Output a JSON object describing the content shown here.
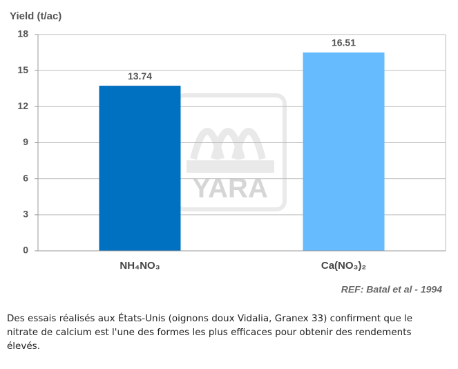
{
  "chart_data": {
    "type": "bar",
    "y_label": "Yield (t/ac)",
    "categories": [
      "NH₄NO₃",
      "Ca(NO₃)₂"
    ],
    "values": [
      13.74,
      16.51
    ],
    "colors": [
      "#0070c0",
      "#66bbff"
    ],
    "ylim": [
      0,
      18
    ],
    "yticks": [
      0,
      3,
      6,
      9,
      12,
      15,
      18
    ],
    "grid": true,
    "annotation": "REF: Batal et al - 1994",
    "watermark": "YARA"
  },
  "caption": "Des essais réalisés aux États-Unis (oignons doux Vidalia, Granex 33) confirment que le nitrate de calcium est l'une des formes les plus efficaces pour obtenir des rendements élevés."
}
